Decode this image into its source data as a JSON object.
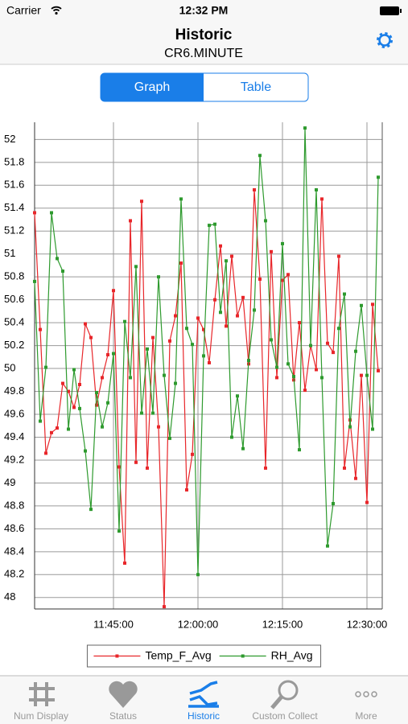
{
  "status_bar": {
    "carrier": "Carrier",
    "time": "12:32 PM"
  },
  "nav": {
    "title": "Historic",
    "subtitle": "CR6.MINUTE"
  },
  "segmented": [
    "Graph",
    "Table"
  ],
  "chart_data": {
    "type": "line",
    "x": [
      "11:31:00",
      "11:32:00",
      "11:33:00",
      "11:34:00",
      "11:35:00",
      "11:36:00",
      "11:37:00",
      "11:38:00",
      "11:39:00",
      "11:40:00",
      "11:41:00",
      "11:42:00",
      "11:43:00",
      "11:44:00",
      "11:45:00",
      "11:46:00",
      "11:47:00",
      "11:48:00",
      "11:49:00",
      "11:50:00",
      "11:51:00",
      "11:52:00",
      "11:53:00",
      "11:54:00",
      "11:55:00",
      "11:56:00",
      "11:57:00",
      "11:58:00",
      "11:59:00",
      "12:00:00",
      "12:01:00",
      "12:02:00",
      "12:03:00",
      "12:04:00",
      "12:05:00",
      "12:06:00",
      "12:07:00",
      "12:08:00",
      "12:09:00",
      "12:10:00",
      "12:11:00",
      "12:12:00",
      "12:13:00",
      "12:14:00",
      "12:15:00",
      "12:16:00",
      "12:17:00",
      "12:18:00",
      "12:19:00",
      "12:20:00",
      "12:21:00",
      "12:22:00",
      "12:23:00",
      "12:24:00",
      "12:25:00",
      "12:26:00",
      "12:27:00",
      "12:28:00",
      "12:29:00",
      "12:30:00",
      "12:31:00",
      "12:32:00"
    ],
    "xticks": [
      "11:45:00",
      "12:00:00",
      "12:15:00",
      "12:30:00"
    ],
    "series": [
      {
        "name": "Temp_F_Avg",
        "color": "#e8262a",
        "values": [
          51.36,
          50.34,
          49.26,
          49.44,
          49.48,
          49.87,
          49.8,
          49.66,
          49.86,
          50.39,
          50.27,
          49.68,
          49.92,
          50.12,
          50.68,
          49.14,
          48.3,
          51.29,
          49.18,
          51.46,
          49.13,
          50.27,
          49.49,
          47.92,
          50.24,
          50.46,
          50.92,
          48.94,
          49.25,
          50.44,
          50.34,
          50.05,
          50.6,
          51.07,
          50.37,
          50.98,
          50.46,
          50.62,
          50.04,
          51.56,
          50.78,
          49.13,
          51.02,
          49.92,
          50.77,
          50.82,
          49.9,
          50.4,
          49.81,
          50.2,
          49.99,
          51.48,
          50.22,
          50.14,
          50.98,
          49.13,
          49.55,
          49.04,
          49.94,
          48.83,
          50.56,
          49.98
        ]
      },
      {
        "name": "RH_Avg",
        "color": "#2e9a2e",
        "values": [
          50.76,
          49.54,
          50.01,
          51.36,
          50.96,
          50.85,
          49.47,
          49.99,
          49.65,
          49.28,
          48.77,
          49.79,
          49.49,
          49.7,
          50.13,
          48.58,
          50.41,
          49.92,
          50.89,
          49.61,
          50.17,
          49.61,
          50.8,
          49.94,
          49.39,
          49.87,
          51.48,
          50.35,
          50.21,
          48.2,
          50.11,
          51.25,
          51.26,
          50.49,
          50.94,
          49.4,
          49.76,
          49.3,
          50.07,
          50.51,
          51.86,
          51.29,
          50.25,
          50.01,
          51.09,
          50.04,
          49.93,
          49.29,
          52.1,
          50.2,
          51.56,
          49.92,
          48.45,
          48.82,
          50.35,
          50.65,
          49.49,
          50.15,
          50.55,
          49.94,
          49.47,
          51.67
        ]
      }
    ],
    "ylim": [
      47.9,
      52.15
    ],
    "yticks": [
      48,
      48.2,
      48.4,
      48.6,
      48.8,
      49,
      49.2,
      49.4,
      49.6,
      49.8,
      50,
      50.2,
      50.4,
      50.6,
      50.8,
      51,
      51.2,
      51.4,
      51.6,
      51.8,
      52
    ],
    "grid": true,
    "legend": "bottom"
  },
  "tab_bar": [
    "Num Display",
    "Status",
    "Historic",
    "Custom Collect",
    "More"
  ]
}
